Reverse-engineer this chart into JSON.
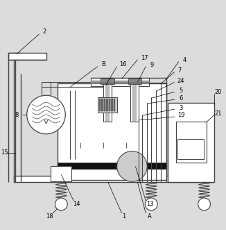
{
  "bg_color": "#dcdcdc",
  "line_color": "#444444",
  "fig_width": 3.26,
  "fig_height": 3.31,
  "dpi": 100
}
